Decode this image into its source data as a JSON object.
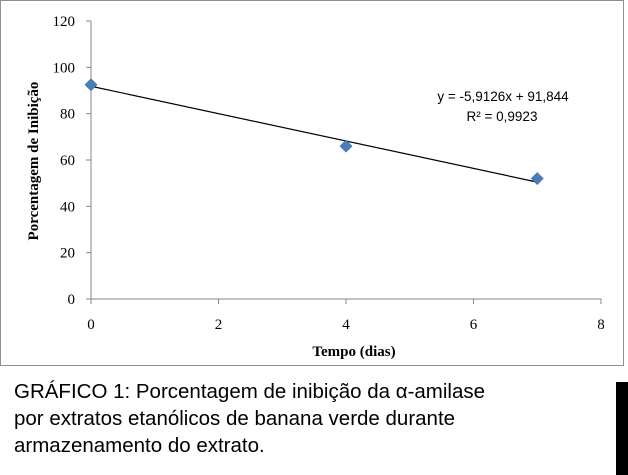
{
  "chart_data": {
    "type": "scatter",
    "title": "",
    "xlabel": "Tempo (dias)",
    "ylabel": "Porcentagem de Inibição",
    "xlim": [
      0,
      8
    ],
    "ylim": [
      0,
      120
    ],
    "x_ticks": [
      "0",
      "2",
      "4",
      "6",
      "8"
    ],
    "y_ticks": [
      "0",
      "20",
      "40",
      "60",
      "80",
      "100",
      "120"
    ],
    "x_tick_values": [
      0,
      2,
      4,
      6,
      8
    ],
    "y_tick_values": [
      0,
      20,
      40,
      60,
      80,
      100,
      120
    ],
    "grid": false,
    "legend": "none",
    "series": [
      {
        "x": [
          0,
          4,
          7
        ],
        "y": [
          92.5,
          66,
          52
        ],
        "marker": "diamond",
        "color": "#4a7ebb"
      }
    ],
    "trendline": {
      "type": "linear",
      "slope": -5.9126,
      "intercept": 91.844,
      "x_range": [
        0,
        7
      ],
      "color": "#000000",
      "equation_label": "y = -5,9126x + 91,844",
      "r2_label": "R² = 0,9923"
    }
  },
  "caption": {
    "lines": [
      "GRÁFICO 1: Porcentagem de inibição da α-amilase",
      "por extratos etanólicos de banana verde durante",
      "armazenamento do extrato."
    ]
  }
}
